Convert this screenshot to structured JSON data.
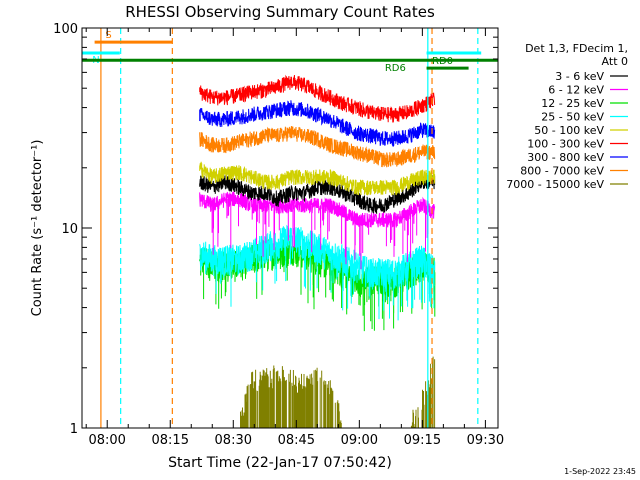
{
  "chart_data": {
    "type": "line",
    "title": "RHESSI Observing Summary Count Rates",
    "xlabel": "Start Time (22-Jan-17 07:50:42)",
    "ylabel": "Count Rate (s⁻¹ detector⁻¹)",
    "ylog": true,
    "ylim": [
      1,
      100
    ],
    "xlim_minutes": [
      -6,
      93
    ],
    "x_ticks": [
      {
        "label": "08:00",
        "min": 0
      },
      {
        "label": "08:15",
        "min": 15
      },
      {
        "label": "08:30",
        "min": 30
      },
      {
        "label": "08:45",
        "min": 45
      },
      {
        "label": "09:00",
        "min": 60
      },
      {
        "label": "09:15",
        "min": 75
      },
      {
        "label": "09:30",
        "min": 90
      }
    ],
    "y_ticks": [
      {
        "label": "1",
        "v": 1
      },
      {
        "label": "10",
        "v": 10
      },
      {
        "label": "100",
        "v": 100
      }
    ],
    "legend_header": [
      "Det 1,3, FDecim 1,",
      "Att 0"
    ],
    "legend_placement": "right",
    "data_start_min": 22,
    "data_end_min": 78,
    "series": [
      {
        "name": "3 - 6 keV",
        "color": "#000000",
        "values": [
          17,
          16,
          17,
          16,
          15,
          15,
          14,
          15,
          15,
          16,
          16,
          15,
          14,
          13,
          13,
          14,
          15,
          17,
          17
        ]
      },
      {
        "name": "6 - 12 keV",
        "color": "#ff00ff",
        "values": [
          14,
          13,
          14,
          14,
          13,
          13,
          13,
          13,
          13,
          13,
          13,
          12,
          11,
          11,
          11,
          11,
          12,
          13,
          12
        ]
      },
      {
        "name": "12 - 25 keV",
        "color": "#00e000",
        "values": [
          7,
          6.5,
          6.5,
          6.5,
          7,
          7.5,
          7.5,
          8,
          7.5,
          7,
          6.5,
          6,
          5.5,
          5.5,
          5.5,
          5.5,
          6,
          6.5,
          6
        ]
      },
      {
        "name": "25 - 50 keV",
        "color": "#00ffff",
        "values": [
          7.5,
          7,
          7,
          7,
          7.5,
          8,
          8.5,
          9,
          8.5,
          8,
          7.5,
          7,
          6.5,
          6,
          6,
          6,
          6.5,
          7,
          6
        ]
      },
      {
        "name": "50 - 100 keV",
        "color": "#d0d000",
        "values": [
          20,
          18,
          19,
          19,
          18,
          17,
          17,
          18,
          18,
          18,
          18,
          17,
          16,
          16,
          16,
          16,
          17,
          18,
          18
        ]
      },
      {
        "name": "100 - 300 keV",
        "color": "#ff0000",
        "values": [
          48,
          45,
          45,
          46,
          48,
          49,
          51,
          54,
          52,
          48,
          45,
          42,
          40,
          38,
          37,
          37,
          38,
          41,
          44
        ]
      },
      {
        "name": "300 - 800 keV",
        "color": "#0000ff",
        "values": [
          37,
          35,
          35,
          36,
          37,
          38,
          39,
          40,
          39,
          37,
          35,
          32,
          30,
          29,
          28,
          28,
          29,
          31,
          30
        ]
      },
      {
        "name": "800 - 7000 keV",
        "color": "#ff8000",
        "values": [
          28,
          26,
          26,
          27,
          28,
          29,
          29,
          30,
          29,
          28,
          26,
          25,
          24,
          23,
          22,
          22,
          23,
          24,
          24
        ]
      },
      {
        "name": "7000 - 15000 keV",
        "color": "#808000",
        "values": [
          1,
          1,
          1,
          1,
          1.8,
          1.8,
          1.9,
          1.8,
          1.7,
          1.9,
          1.6,
          1,
          1,
          1,
          1,
          1,
          1,
          1.4,
          2.2
        ]
      }
    ],
    "annotations": [
      {
        "label": "S",
        "color": "#ff8000",
        "x_start": -3,
        "x_end": 15.5,
        "y": 85,
        "type": "flag"
      },
      {
        "label": "N",
        "color": "#00ffff",
        "x_start": -6,
        "x_end": 3,
        "y": 75,
        "type": "flag"
      },
      {
        "label": "RD6",
        "color": "#008000",
        "x_start": -6,
        "x_end": 93,
        "y": 69,
        "type": "flag"
      },
      {
        "label": "RD0",
        "color": "#008000",
        "x_start": 76,
        "x_end": 86,
        "y": 63,
        "type": "flag"
      },
      {
        "label": "",
        "color": "#00ffff",
        "x_start": 76,
        "x_end": 89,
        "y": 75,
        "type": "flag"
      }
    ],
    "vlines": [
      {
        "x": -1.5,
        "color": "#ff8000",
        "dash": false
      },
      {
        "x": 3.2,
        "color": "#00ffff",
        "dash": true
      },
      {
        "x": 15.5,
        "color": "#ff8000",
        "dash": true
      },
      {
        "x": 76.3,
        "color": "#00ffff",
        "dash": false
      },
      {
        "x": 77.3,
        "color": "#ff8000",
        "dash": true
      },
      {
        "x": 88.2,
        "color": "#00ffff",
        "dash": true
      }
    ]
  },
  "footer_date": "1-Sep-2022 23:45"
}
